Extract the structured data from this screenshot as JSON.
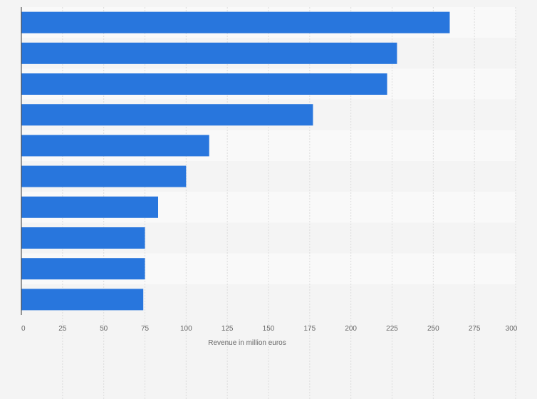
{
  "chart_data": {
    "type": "bar",
    "orientation": "horizontal",
    "categories": [
      "",
      "",
      "",
      "",
      "",
      "",
      "",
      "",
      "",
      ""
    ],
    "values": [
      260,
      228,
      222,
      177,
      114,
      100,
      83,
      75,
      75,
      74
    ],
    "title": "",
    "xlabel": "Revenue in million euros",
    "ylabel": "",
    "xlim": [
      0,
      300
    ],
    "xticks": [
      0,
      25,
      50,
      75,
      100,
      125,
      150,
      175,
      200,
      225,
      250,
      275,
      300
    ],
    "grid": true,
    "legend": "none",
    "colors": {
      "bar": "#2876dd",
      "background": "#f4f4f4",
      "band_light": "#f9f9f9",
      "band_dark": "#f4f4f4",
      "grid": "#dcdcdc",
      "axis": "#333333",
      "text": "#666666"
    }
  }
}
